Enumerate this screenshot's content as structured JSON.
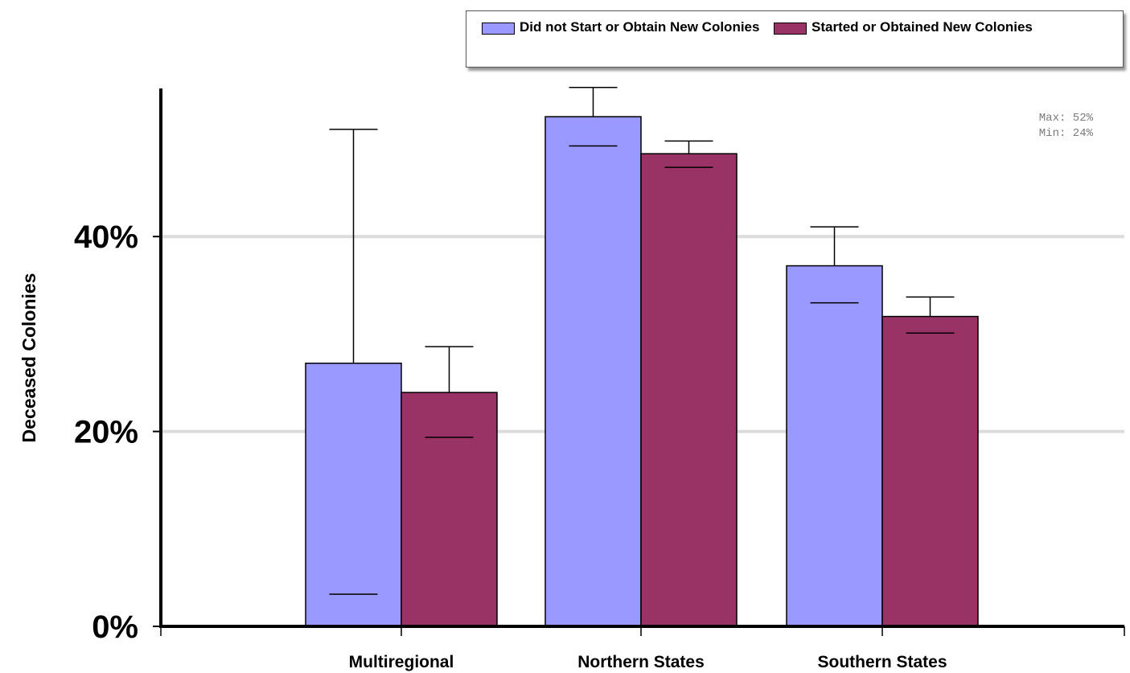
{
  "chart_data": {
    "type": "bar",
    "ylabel": "Deceased Colonies",
    "categories": [
      "Multiregional",
      "Northern States",
      "Southern States"
    ],
    "yticks": [
      "0%",
      "20%",
      "40%"
    ],
    "ytick_values": [
      0,
      20,
      40
    ],
    "ylim": [
      0,
      55.5
    ],
    "grid": true,
    "legend_placement": "top",
    "series": [
      {
        "name": "Did not Start or Obtain New Colonies",
        "color": "#9999ff",
        "values": [
          27,
          52.3,
          37
        ],
        "error_low": [
          3.3,
          49.3,
          33.2
        ],
        "error_high": [
          51,
          55.3,
          41
        ]
      },
      {
        "name": "Started or Obtained New Colonies",
        "color": "#993366",
        "values": [
          24,
          48.5,
          31.8
        ],
        "error_low": [
          19.4,
          47.1,
          30.1
        ],
        "error_high": [
          28.7,
          49.8,
          33.8
        ]
      }
    ],
    "annotations": [
      "Max: 52%",
      "Min: 24%"
    ]
  }
}
